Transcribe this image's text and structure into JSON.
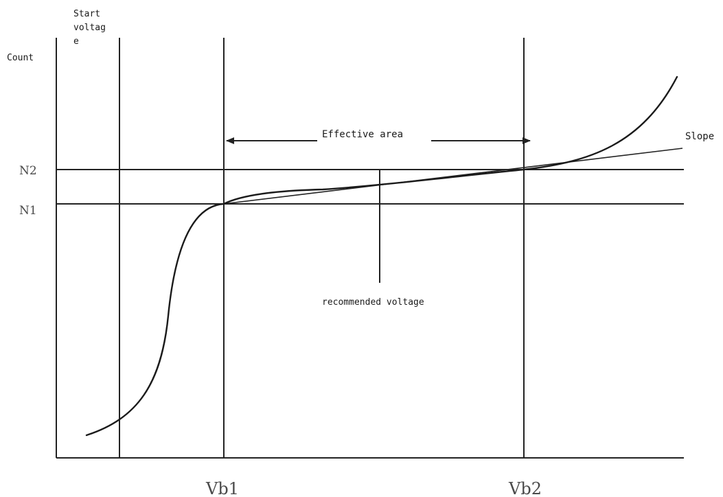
{
  "labels": {
    "start_voltage_line1": "Start",
    "start_voltage_line2": "voltag",
    "start_voltage_line3": "e",
    "count": "Count",
    "n2": "N2",
    "n1": "N1",
    "effective_area": "Effective area",
    "slope": "Slope",
    "recommended_voltage": "recommended voltage",
    "vb1": "Vb1",
    "vb2": "Vb2"
  }
}
